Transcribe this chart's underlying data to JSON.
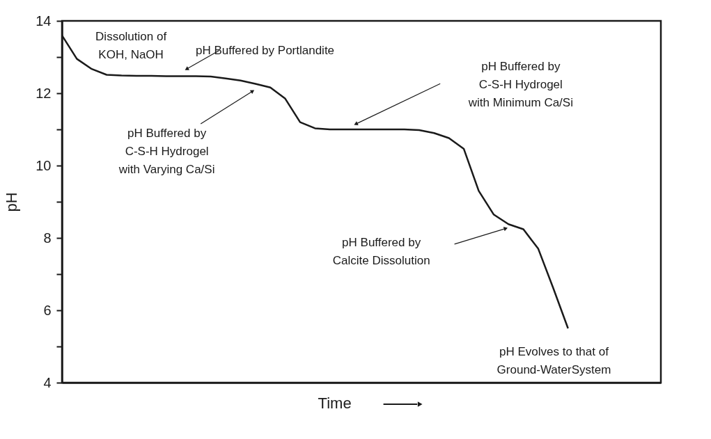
{
  "chart_data": {
    "type": "line",
    "xlabel": "Time",
    "ylabel": "pH",
    "categories": [
      null,
      null,
      null,
      null,
      null,
      null,
      null,
      null,
      null,
      null,
      null,
      null,
      null,
      null,
      null,
      null,
      null,
      null,
      null,
      null,
      null,
      null,
      null,
      null,
      null,
      null,
      null,
      null,
      null,
      null,
      null,
      null,
      null,
      null,
      null
    ],
    "series": [
      {
        "color": "#1a1a1a",
        "values": [
          13.6,
          12.95,
          12.67,
          12.51,
          12.49,
          12.48,
          12.48,
          12.47,
          12.47,
          12.47,
          12.46,
          12.41,
          12.35,
          12.26,
          12.16,
          11.85,
          11.2,
          11.03,
          11.0,
          11.0,
          11.0,
          11.0,
          11.0,
          11.0,
          10.98,
          10.9,
          10.76,
          10.46,
          9.3,
          8.65,
          8.38,
          8.24,
          7.7,
          6.62,
          5.5
        ]
      }
    ],
    "ylim": [
      4,
      14
    ],
    "yticks": [
      4,
      {
        "value": 5,
        "label": null
      },
      6,
      {
        "value": 7,
        "label": null
      },
      8,
      {
        "value": 9,
        "label": null
      },
      10,
      {
        "value": 11,
        "label": null
      },
      12,
      {
        "value": 13,
        "label": null
      },
      14
    ],
    "tick_labels": "y",
    "grid": false,
    "marker": "none",
    "line_style": "solid",
    "annotations": [
      "Dissolution of\nKOH, NaOH",
      "pH Buffered by Portlandite",
      "pH Buffered by\nC-S-H  Hydrogel\nwith Varying Ca/Si",
      "pH Buffered by\nC-S-H  Hydrogel\nwith Minimum Ca/Si",
      "pH Buffered by\nCalcite Dissolution",
      "pH Evolves to that of\nGround-WaterSystem"
    ]
  }
}
